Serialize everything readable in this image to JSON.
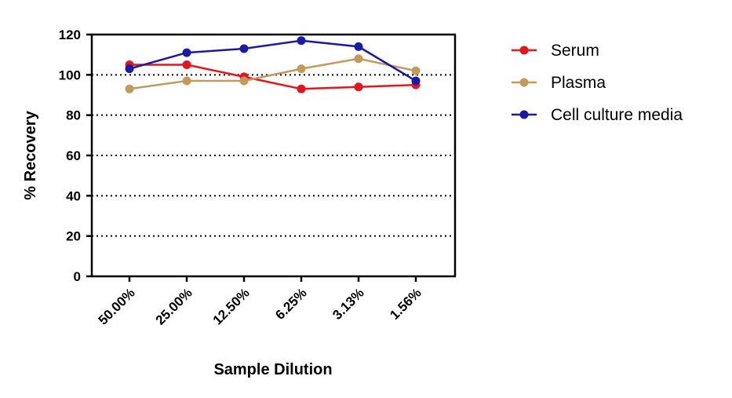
{
  "chart_data": {
    "type": "line",
    "title": "",
    "xlabel": "Sample Dilution",
    "ylabel": "% Recovery",
    "categories": [
      "50.00%",
      "25.00%",
      "12.50%",
      "6.25%",
      "3.13%",
      "1.56%"
    ],
    "yticks": [
      "0",
      "20",
      "40",
      "60",
      "80",
      "100",
      "120"
    ],
    "ylim": [
      0,
      120
    ],
    "grid": "horizontal dotted",
    "legend_position": "right",
    "series": [
      {
        "name": "Serum",
        "color": "#e8141b",
        "values": [
          105,
          105,
          99,
          93,
          94,
          95
        ]
      },
      {
        "name": "Plasma",
        "color": "#c49a5c",
        "values": [
          93,
          97,
          97,
          103,
          108,
          102
        ]
      },
      {
        "name": "Cell culture media",
        "color": "#1a1aa8",
        "values": [
          103,
          111,
          113,
          117,
          114,
          97
        ]
      }
    ]
  }
}
